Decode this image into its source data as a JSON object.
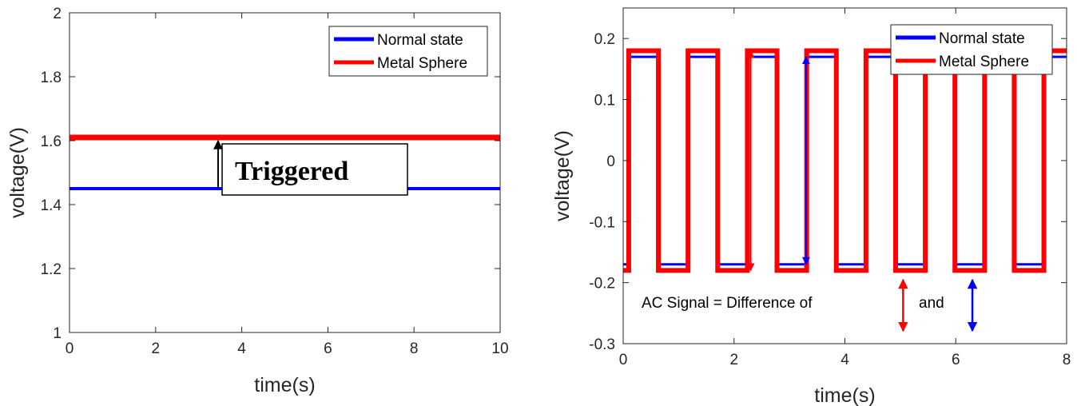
{
  "colors": {
    "normal": "#0000ff",
    "metal": "#ff0000",
    "axis": "#262626",
    "text": "#000000"
  },
  "chart_data": [
    {
      "type": "line",
      "title": "",
      "xlabel": "time(s)",
      "ylabel": "voltage(V)",
      "xlim": [
        0,
        10
      ],
      "ylim": [
        1,
        2
      ],
      "xticks": [
        0,
        2,
        4,
        6,
        8,
        10
      ],
      "yticks": [
        1,
        1.2,
        1.4,
        1.6,
        1.8,
        2
      ],
      "grid": false,
      "legend": "top-right",
      "series": [
        {
          "name": "Normal state",
          "color": "#0000ff",
          "x": [
            0,
            10
          ],
          "y": [
            1.45,
            1.45
          ]
        },
        {
          "name": "Metal Sphere",
          "color": "#ff0000",
          "x": [
            0,
            10
          ],
          "y": [
            1.61,
            1.61
          ]
        }
      ],
      "annotation": {
        "text": "Triggered",
        "arrow_x": 3.45,
        "arrow_from": 1.45,
        "arrow_to": 1.61
      }
    },
    {
      "type": "line",
      "title": "",
      "xlabel": "time(s)",
      "ylabel": "voltage(V)",
      "xlim": [
        0,
        8
      ],
      "ylim": [
        -0.3,
        0.25
      ],
      "xticks": [
        0,
        2,
        4,
        6,
        8
      ],
      "yticks": [
        -0.3,
        -0.2,
        -0.1,
        0,
        0.1,
        0.2
      ],
      "grid": false,
      "legend": "top-right",
      "series": [
        {
          "name": "Normal state",
          "color": "#0000ff",
          "period": 1.07,
          "duty": 0.5,
          "phase": 0.1,
          "high": 0.17,
          "low": -0.17
        },
        {
          "name": "Metal Sphere",
          "color": "#ff0000",
          "period": 1.07,
          "duty": 0.5,
          "phase": 0.1,
          "high": 0.18,
          "low": -0.18
        }
      ],
      "annotation": {
        "text_main": "AC Signal = Difference of",
        "text_and": "and",
        "red_arrow": {
          "x": 2.3,
          "from": -0.18,
          "to": 0.18
        },
        "blue_arrow": {
          "x": 3.3,
          "from": -0.17,
          "to": 0.17
        },
        "red_legend_arrow": {
          "x": 5.05,
          "from": -0.225,
          "to": -0.28
        },
        "blue_legend_arrow": {
          "x": 6.3,
          "from": -0.225,
          "to": -0.28
        }
      }
    }
  ]
}
